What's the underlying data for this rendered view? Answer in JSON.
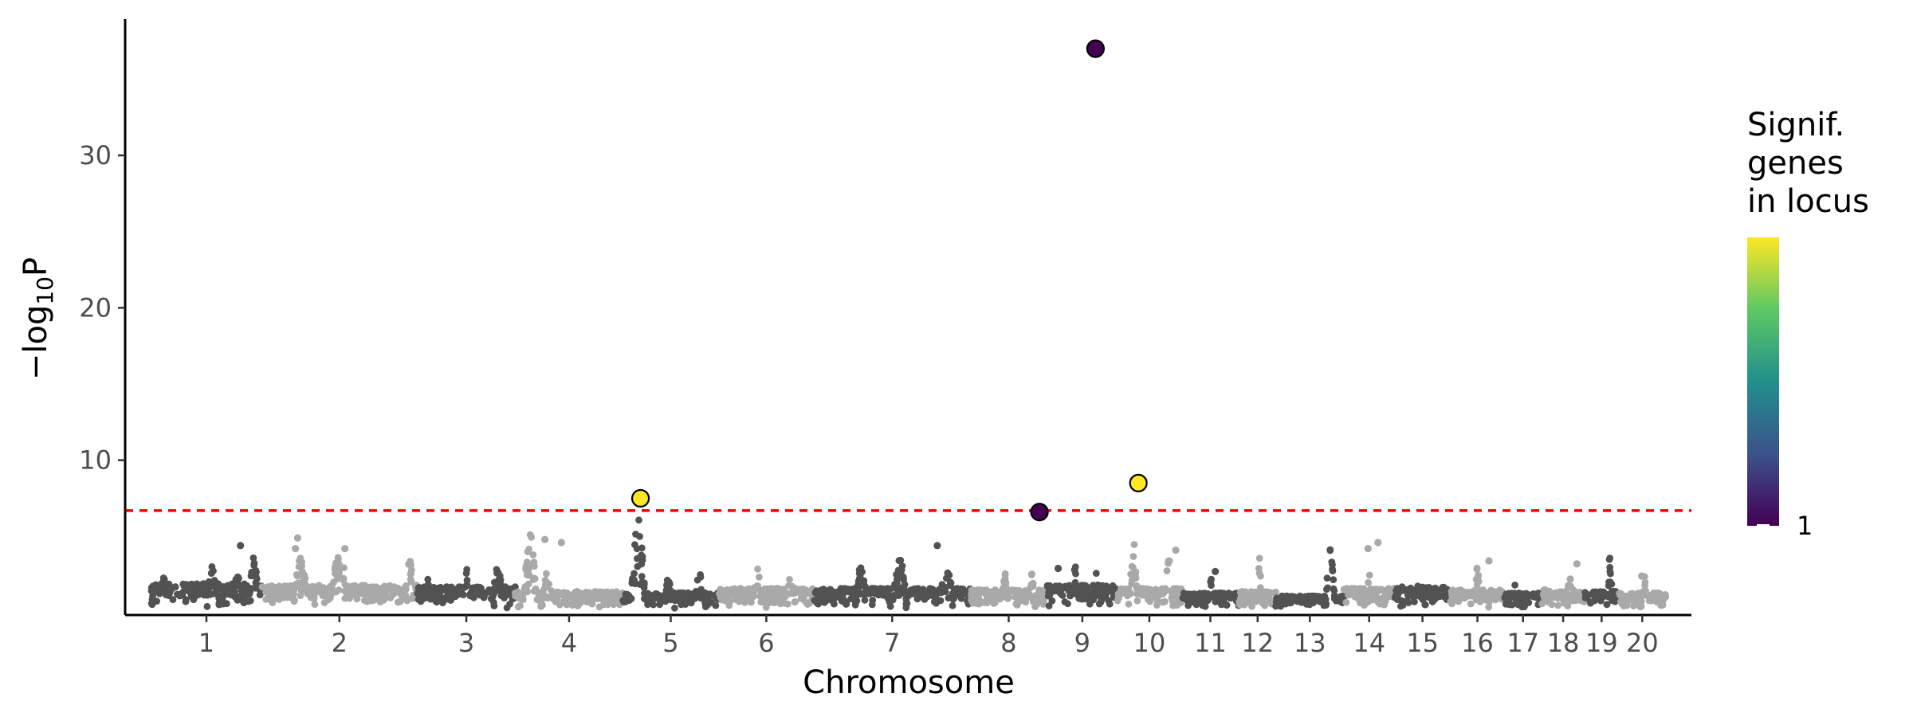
{
  "chart_data": {
    "type": "scatter",
    "xlabel": "Chromosome",
    "ylabel_prefix": "−log",
    "ylabel_sub": "10",
    "ylabel_suffix": "P",
    "ylim": [
      0,
      38
    ],
    "yticks": [
      10,
      20,
      30
    ],
    "threshold": 6.7,
    "threshold_color": "#ff0000",
    "colors": {
      "dark": "#525252",
      "light": "#a9a9a9",
      "low": "#440154",
      "high": "#fde725"
    },
    "chromosomes": [
      {
        "label": "1",
        "start": 0.0,
        "end": 100.0,
        "shade": "dark",
        "base": 1.9,
        "peaks": [
          [
            12,
            2.6
          ],
          [
            55,
            3.1
          ],
          [
            78,
            2.6
          ],
          [
            93,
            3.6
          ]
        ]
      },
      {
        "label": "2",
        "start": 100.0,
        "end": 242.0,
        "shade": "light",
        "base": 1.8,
        "peaks": [
          [
            25,
            3.6
          ],
          [
            50,
            4.2
          ],
          [
            95,
            3.4
          ]
        ]
      },
      {
        "label": "3",
        "start": 242.0,
        "end": 331.0,
        "shade": "dark",
        "base": 1.7,
        "peaks": [
          [
            10,
            2.6
          ],
          [
            50,
            3.0
          ],
          [
            82,
            3.4
          ]
        ]
      },
      {
        "label": "4",
        "start": 331.0,
        "end": 429.0,
        "shade": "light",
        "base": 1.4,
        "peaks": [
          [
            14,
            5.2
          ],
          [
            30,
            3.0
          ]
        ]
      },
      {
        "label": "5",
        "start": 429.0,
        "end": 516.0,
        "shade": "dark",
        "base": 1.3,
        "peaks": [
          [
            16,
            6.2
          ],
          [
            48,
            2.6
          ],
          [
            80,
            2.9
          ]
        ]
      },
      {
        "label": "6",
        "start": 516.0,
        "end": 603.0,
        "shade": "light",
        "base": 1.6,
        "peaks": [
          [
            40,
            3.2
          ],
          [
            75,
            2.4
          ]
        ]
      },
      {
        "label": "7",
        "start": 603.0,
        "end": 745.0,
        "shade": "dark",
        "base": 1.6,
        "peaks": [
          [
            30,
            3.0
          ],
          [
            55,
            3.5
          ],
          [
            85,
            3.0
          ]
        ]
      },
      {
        "label": "8",
        "start": 745.0,
        "end": 815.0,
        "shade": "light",
        "base": 1.5,
        "peaks": [
          [
            45,
            2.6
          ],
          [
            80,
            2.6
          ]
        ]
      },
      {
        "label": "9",
        "start": 815.0,
        "end": 879.0,
        "shade": "dark",
        "base": 1.8,
        "peaks": [
          [
            40,
            3.2
          ],
          [
            70,
            3.0
          ]
        ]
      },
      {
        "label": "10",
        "start": 879.0,
        "end": 937.0,
        "shade": "light",
        "base": 1.6,
        "peaks": [
          [
            25,
            4.8
          ],
          [
            80,
            4.0
          ]
        ]
      },
      {
        "label": "11",
        "start": 937.0,
        "end": 990.0,
        "shade": "dark",
        "base": 1.3,
        "peaks": [
          [
            50,
            2.6
          ]
        ]
      },
      {
        "label": "12",
        "start": 990.0,
        "end": 1023.0,
        "shade": "light",
        "base": 1.4,
        "peaks": [
          [
            55,
            3.8
          ]
        ]
      },
      {
        "label": "13",
        "start": 1023.0,
        "end": 1085.0,
        "shade": "dark",
        "base": 1.1,
        "peaks": [
          [
            80,
            4.8
          ]
        ]
      },
      {
        "label": "14",
        "start": 1085.0,
        "end": 1131.0,
        "shade": "light",
        "base": 1.6,
        "peaks": [
          [
            50,
            2.6
          ]
        ]
      },
      {
        "label": "15",
        "start": 1131.0,
        "end": 1182.0,
        "shade": "dark",
        "base": 1.7,
        "peaks": [
          [
            40,
            2.4
          ]
        ]
      },
      {
        "label": "16",
        "start": 1182.0,
        "end": 1231.0,
        "shade": "light",
        "base": 1.5,
        "peaks": [
          [
            50,
            3.0
          ]
        ]
      },
      {
        "label": "17",
        "start": 1231.0,
        "end": 1265.0,
        "shade": "dark",
        "base": 1.3,
        "peaks": [
          [
            30,
            2.4
          ]
        ]
      },
      {
        "label": "18",
        "start": 1265.0,
        "end": 1304.0,
        "shade": "light",
        "base": 1.5,
        "peaks": [
          [
            65,
            3.2
          ]
        ]
      },
      {
        "label": "19",
        "start": 1304.0,
        "end": 1335.0,
        "shade": "dark",
        "base": 1.4,
        "peaks": [
          [
            75,
            4.3
          ]
        ]
      },
      {
        "label": "20",
        "start": 1335.0,
        "end": 1378.0,
        "shade": "light",
        "base": 1.3,
        "peaks": [
          [
            55,
            2.4
          ]
        ]
      }
    ],
    "outliers": [
      {
        "x": 133.0,
        "y": 4.9
      },
      {
        "x": 176.0,
        "y": 4.2
      },
      {
        "x": 131.0,
        "y": 4.2
      },
      {
        "x": 358.0,
        "y": 4.8
      },
      {
        "x": 373.0,
        "y": 4.6
      },
      {
        "x": 81.0,
        "y": 4.4
      },
      {
        "x": 715.0,
        "y": 4.4
      },
      {
        "x": 1116.0,
        "y": 4.6
      },
      {
        "x": 1107.0,
        "y": 4.2
      },
      {
        "x": 1217.0,
        "y": 3.4
      },
      {
        "x": 932.0,
        "y": 4.1
      },
      {
        "x": 968.0,
        "y": 2.7
      },
      {
        "x": 1297.0,
        "y": 3.2
      },
      {
        "x": 1291.0,
        "y": 2.2
      },
      {
        "x": 1356.0,
        "y": 2.4
      },
      {
        "x": 825.0,
        "y": 2.9
      },
      {
        "x": 840.0,
        "y": 2.8
      }
    ],
    "highlighted": [
      {
        "chrom": "5",
        "x": 445.0,
        "y": 7.5,
        "color": "high"
      },
      {
        "chrom": "8",
        "x": 808.0,
        "y": 6.6,
        "color": "low"
      },
      {
        "chrom": "9",
        "x": 859.0,
        "y": 37.0,
        "color": "low"
      },
      {
        "chrom": "10",
        "x": 898.0,
        "y": 8.5,
        "color": "high"
      }
    ]
  },
  "legend": {
    "title_lines": [
      "Signif.",
      "genes",
      "in locus"
    ],
    "tick_label": "1",
    "gradient": [
      "#440154",
      "#3b528b",
      "#21908c",
      "#5dc863",
      "#fde725"
    ]
  }
}
